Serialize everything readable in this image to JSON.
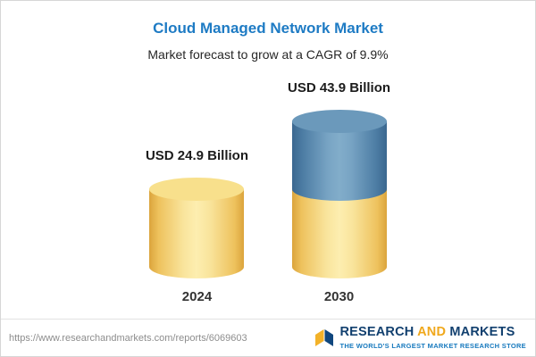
{
  "header": {
    "title": "Cloud Managed Network Market",
    "subtitle": "Market forecast to grow at a CAGR of 9.9%"
  },
  "chart_data": {
    "type": "bar",
    "subtype": "stacked-3d-cylinder",
    "title": "Cloud Managed Network Market",
    "subtitle": "Market forecast to grow at a CAGR of 9.9%",
    "cagr_percent": 9.9,
    "unit": "USD Billion",
    "categories": [
      "2024",
      "2030"
    ],
    "values": [
      24.9,
      43.9
    ],
    "value_labels": [
      "USD 24.9 Billion",
      "USD 43.9 Billion"
    ],
    "bars": [
      {
        "category": "2024",
        "value": 24.9,
        "label": "USD 24.9 Billion",
        "segments": [
          {
            "color": "yellow",
            "value": 24.9
          }
        ]
      },
      {
        "category": "2030",
        "value": 43.9,
        "label": "USD 43.9 Billion",
        "segments": [
          {
            "color": "yellow",
            "value": 24.9
          },
          {
            "color": "blue",
            "value": 19.0
          }
        ]
      }
    ],
    "colors": {
      "yellow": "#f6d26f",
      "blue": "#5586ac",
      "title_accent": "#1e7bc4"
    },
    "legend": false,
    "axes": false
  },
  "footer": {
    "url": "https://www.researchandmarkets.com/reports/6069603",
    "logo": {
      "name_part1": "RESEARCH",
      "name_part2": "AND",
      "name_part3": "MARKETS",
      "tagline": "THE WORLD'S LARGEST MARKET RESEARCH STORE",
      "navy": "#12406f",
      "gold": "#f0a81c",
      "tagline_blue": "#1779be"
    }
  }
}
